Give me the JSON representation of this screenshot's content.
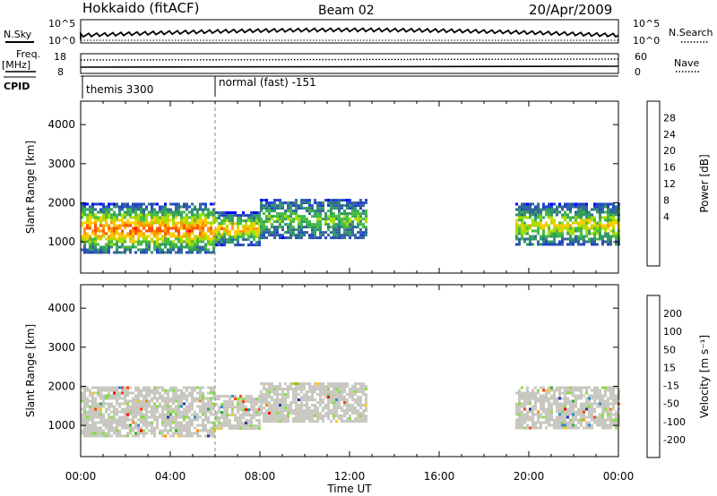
{
  "header": {
    "station": "Hokkaido (fitACF)",
    "beam": "Beam 02",
    "date": "20/Apr/2009"
  },
  "strips": {
    "nsky_label": "N.Sky",
    "nsearch_label": "N.Search",
    "nsky_ticks": [
      "10^5",
      "10^0"
    ],
    "nsearch_ticks": [
      "10^5",
      "10^0"
    ],
    "freq_label": "Freq.",
    "freq_unit": "[MHz]",
    "freq_ticks": [
      "18",
      "8"
    ],
    "nave_label": "Nave",
    "nave_ticks": [
      "60",
      "0"
    ],
    "cpid_label": "CPID",
    "cpid_modes": [
      {
        "label": "themis 3300",
        "start_hour": 0,
        "end_hour": 6
      },
      {
        "label": "normal (fast) -151",
        "start_hour": 6,
        "end_hour": 24
      }
    ]
  },
  "chart_data": [
    {
      "type": "heatmap",
      "name": "power",
      "ylabel": "Slant Range [km]",
      "xlabel": "Time UT",
      "xlim": [
        0,
        24
      ],
      "ylim": [
        200,
        4600
      ],
      "yticks": [
        "4000",
        "3000",
        "2000",
        "1000"
      ],
      "xticks": [
        "00:00",
        "04:00",
        "08:00",
        "12:00",
        "16:00",
        "20:00",
        "00:00"
      ],
      "mode_change_hour": 6,
      "colorbar": {
        "label": "Power [dB]",
        "ticks": [
          "28",
          "24",
          "20",
          "16",
          "12",
          "8",
          "4"
        ],
        "colors": [
          "#ff0000",
          "#ff5500",
          "#ff9900",
          "#ffcc00",
          "#aadd00",
          "#44bb44",
          "#339966",
          "#336699",
          "#2244cc",
          "#0000ff"
        ]
      },
      "segments": [
        {
          "t0": 0.0,
          "t1": 6.0,
          "r0": 700,
          "r1": 2000,
          "level": 0.75
        },
        {
          "t0": 6.0,
          "t1": 8.0,
          "r0": 950,
          "r1": 1780,
          "level": 0.62
        },
        {
          "t0": 8.0,
          "t1": 12.8,
          "r0": 1100,
          "r1": 2100,
          "level": 0.35
        },
        {
          "t0": 19.4,
          "t1": 24.0,
          "r0": 900,
          "r1": 2000,
          "level": 0.5
        }
      ]
    },
    {
      "type": "heatmap",
      "name": "velocity",
      "ylabel": "Slant Range [km]",
      "xlabel": "Time UT",
      "xlim": [
        0,
        24
      ],
      "ylim": [
        200,
        4600
      ],
      "yticks": [
        "4000",
        "3000",
        "2000",
        "1000"
      ],
      "xticks": [
        "00:00",
        "04:00",
        "08:00",
        "12:00",
        "16:00",
        "20:00",
        "00:00"
      ],
      "mode_change_hour": 6,
      "colorbar": {
        "label": "Velocity [m s⁻¹]",
        "ticks": [
          "200",
          "100",
          "50",
          "15",
          "-15",
          "-50",
          "-100",
          "-200"
        ],
        "colors": [
          "#2233aa",
          "#3388cc",
          "#33aa33",
          "#88dd44",
          "#c8c8c0",
          "#ffcc00",
          "#ff8800",
          "#ff4400",
          "#ff0000"
        ]
      },
      "segments": [
        {
          "t0": 0.0,
          "t1": 6.0,
          "r0": 700,
          "r1": 2000,
          "level": 0.5
        },
        {
          "t0": 6.0,
          "t1": 8.0,
          "r0": 950,
          "r1": 1780,
          "level": 0.5
        },
        {
          "t0": 8.0,
          "t1": 12.8,
          "r0": 1100,
          "r1": 2100,
          "level": 0.5
        },
        {
          "t0": 19.4,
          "t1": 24.0,
          "r0": 900,
          "r1": 2000,
          "level": 0.5
        }
      ]
    }
  ]
}
